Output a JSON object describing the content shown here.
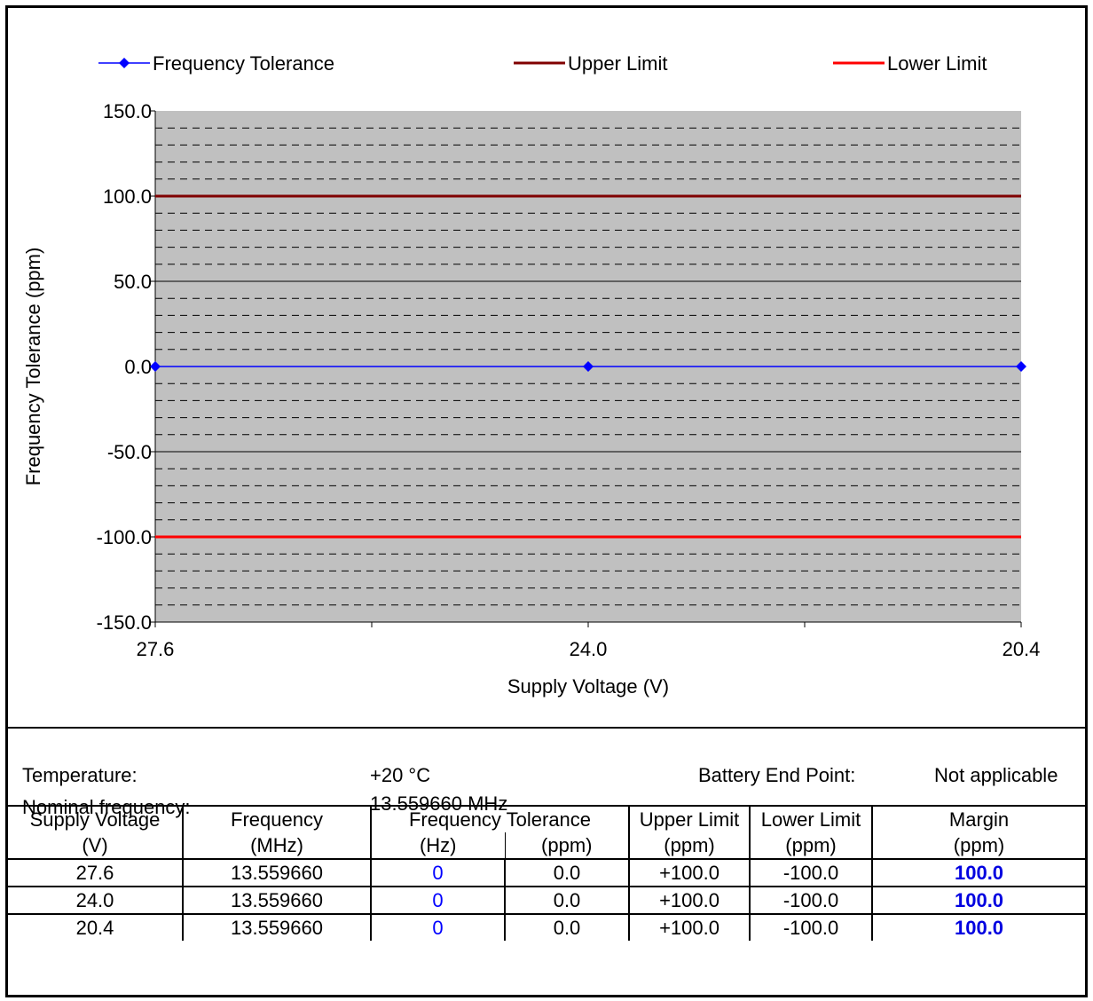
{
  "chart_data": {
    "type": "line",
    "xlabel": "Supply Voltage (V)",
    "ylabel": "Frequency Tolerance (ppm)",
    "ylim": [
      -150,
      150
    ],
    "y_ticks": [
      "150.0",
      "100.0",
      "50.0",
      "0.0",
      "-50.0",
      "-100.0",
      "-150.0"
    ],
    "x_ticks": [
      "27.6",
      "24.0",
      "20.4"
    ],
    "categories": [
      "27.6",
      "24.0",
      "20.4"
    ],
    "grid": "dashed minor gridlines every 10 ppm, solid major every 50 ppm",
    "legend_position": "top",
    "series": [
      {
        "name": "Frequency Tolerance",
        "values": [
          0,
          0,
          0
        ],
        "color": "#0000ff",
        "marker": "diamond"
      },
      {
        "name": "Upper Limit",
        "values": [
          100,
          100,
          100
        ],
        "color": "#800000"
      },
      {
        "name": "Lower Limit",
        "values": [
          -100,
          -100,
          -100
        ],
        "color": "#ff0000"
      }
    ]
  },
  "info": {
    "temperature_label": "Temperature:",
    "temperature_value": "+20 °C",
    "nominal_label": "Nominal frequency:",
    "nominal_value": "13.559660  MHz",
    "battery_label": "Battery End Point:",
    "battery_value": "Not applicable"
  },
  "table": {
    "header1": [
      "Supply Voltage",
      "Frequency",
      "Frequency Tolerance",
      "Upper Limit",
      "Lower Limit",
      "Margin"
    ],
    "header2": [
      "(V)",
      "(MHz)",
      "(Hz)",
      "(ppm)",
      "(ppm)",
      "(ppm)",
      "(ppm)"
    ],
    "rows": [
      [
        "27.6",
        "13.559660",
        "0",
        "0.0",
        "+100.0",
        "-100.0",
        "100.0"
      ],
      [
        "24.0",
        "13.559660",
        "0",
        "0.0",
        "+100.0",
        "-100.0",
        "100.0"
      ],
      [
        "20.4",
        "13.559660",
        "0",
        "0.0",
        "+100.0",
        "-100.0",
        "100.0"
      ]
    ]
  }
}
